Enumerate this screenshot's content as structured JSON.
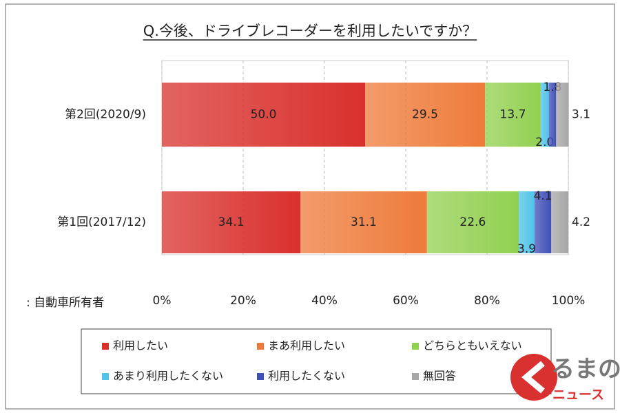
{
  "chart_data": {
    "type": "stacked-bar-horizontal",
    "title": "Q.今後、ドライブレコーダーを利用したいですか？",
    "note": ": 自動車所有者",
    "categories": [
      "第2回(2020/9)",
      "第1回(2017/12)"
    ],
    "series": [
      {
        "name": "利用したい",
        "color": "#d9302c",
        "values": [
          50.0,
          34.1
        ],
        "value_labels": [
          "50.0",
          "34.1"
        ]
      },
      {
        "name": "まあ利用したい",
        "color": "#ee7b3a",
        "values": [
          29.5,
          31.1
        ],
        "value_labels": [
          "29.5",
          "31.1"
        ]
      },
      {
        "name": "どちらともいえない",
        "color": "#92d050",
        "values": [
          13.7,
          22.6
        ],
        "value_labels": [
          "13.7",
          "22.6"
        ]
      },
      {
        "name": "あまり利用したくない",
        "color": "#4fc3e8",
        "values": [
          2.0,
          3.9
        ],
        "value_labels": [
          "2.0",
          "3.9"
        ]
      },
      {
        "name": "利用したくない",
        "color": "#4050b8",
        "values": [
          1.8,
          4.1
        ],
        "value_labels": [
          "1.8",
          "4.1"
        ]
      },
      {
        "name": "無回答",
        "color": "#a6a6a6",
        "values": [
          3.1,
          4.2
        ],
        "value_labels": [
          "3.1",
          "4.2"
        ]
      }
    ],
    "xlim": [
      0,
      100
    ],
    "xticks": [
      {
        "value": 0,
        "label": "0%"
      },
      {
        "value": 20,
        "label": "20%"
      },
      {
        "value": 40,
        "label": "40%"
      },
      {
        "value": 60,
        "label": "60%"
      },
      {
        "value": 80,
        "label": "80%"
      },
      {
        "value": 100,
        "label": "100%"
      }
    ],
    "grid": true,
    "legend": "bottom"
  },
  "watermark": {
    "line1": "るまの",
    "line2": "ニュース"
  }
}
